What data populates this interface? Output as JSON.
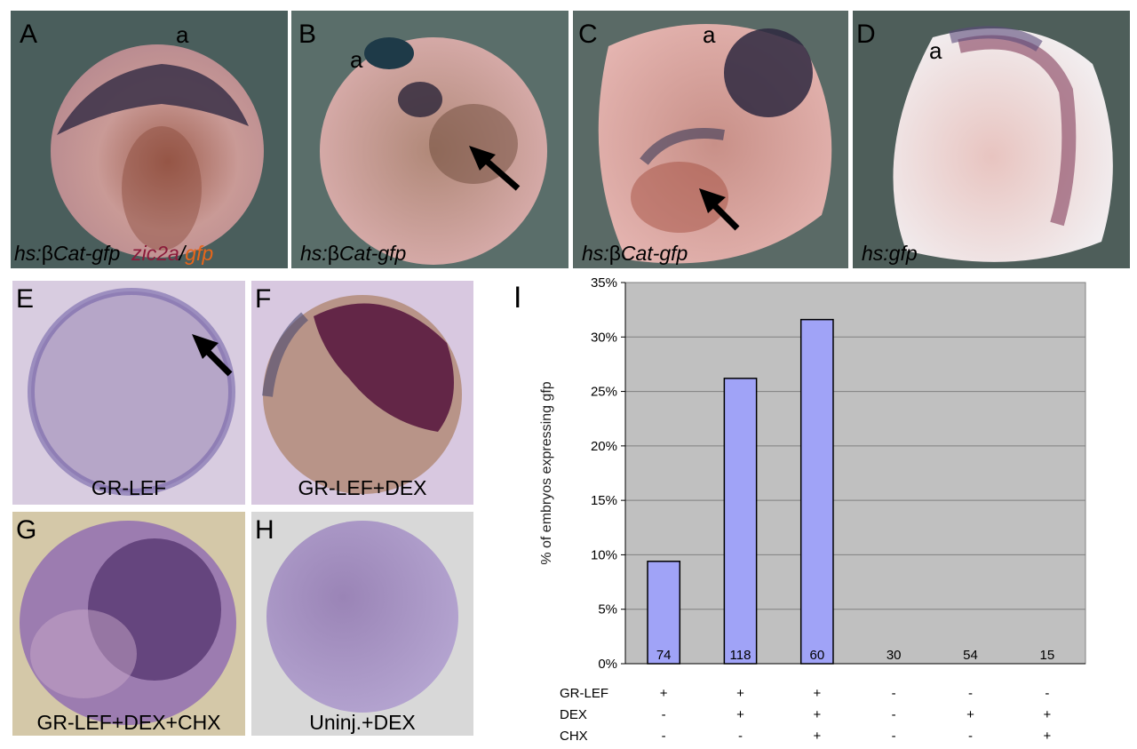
{
  "panels": {
    "A": {
      "letter": "A",
      "axis": "a",
      "caption_prefix": "hs:",
      "caption_beta": "β",
      "caption_rest": "Cat-gfp",
      "caption_zic": "zic2a",
      "caption_slash": "/",
      "caption_gfp": "gfp"
    },
    "B": {
      "letter": "B",
      "axis": "a",
      "caption_prefix": "hs:",
      "caption_beta": "β",
      "caption_rest": "Cat-gfp"
    },
    "C": {
      "letter": "C",
      "axis": "a",
      "caption_prefix": "hs:",
      "caption_beta": "β",
      "caption_rest": "Cat-gfp"
    },
    "D": {
      "letter": "D",
      "axis": "a",
      "caption": "hs:gfp"
    },
    "E": {
      "letter": "E",
      "caption": "GR-LEF"
    },
    "F": {
      "letter": "F",
      "caption": "GR-LEF+DEX"
    },
    "G": {
      "letter": "G",
      "caption": "GR-LEF+DEX+CHX"
    },
    "H": {
      "letter": "H",
      "caption": "Uninj.+DEX"
    },
    "I": {
      "letter": "I"
    }
  },
  "colors": {
    "zic2a": "#8b1a3a",
    "gfp": "#e8661a",
    "bar": "#a0a3f7",
    "plot_bg": "#c0c0c0"
  },
  "chart_data": {
    "type": "bar",
    "ylabel": "% of embryos expressing gfp",
    "ylim": [
      0,
      35
    ],
    "yticks": [
      "0%",
      "5%",
      "10%",
      "15%",
      "20%",
      "25%",
      "30%",
      "35%"
    ],
    "ytick_values": [
      0,
      5,
      10,
      15,
      20,
      25,
      30,
      35
    ],
    "grid": true,
    "values": [
      9.4,
      26.2,
      31.6,
      0,
      0,
      0
    ],
    "n_labels": [
      "74",
      "118",
      "60",
      "30",
      "54",
      "15"
    ],
    "conditions": {
      "rows": [
        "GR-LEF",
        "DEX",
        "CHX"
      ],
      "GR-LEF": [
        "+",
        "+",
        "+",
        "-",
        "-",
        "-"
      ],
      "DEX": [
        "-",
        "+",
        "+",
        "-",
        "+",
        "+"
      ],
      "CHX": [
        "-",
        "-",
        "+",
        "-",
        "-",
        "+"
      ]
    }
  }
}
